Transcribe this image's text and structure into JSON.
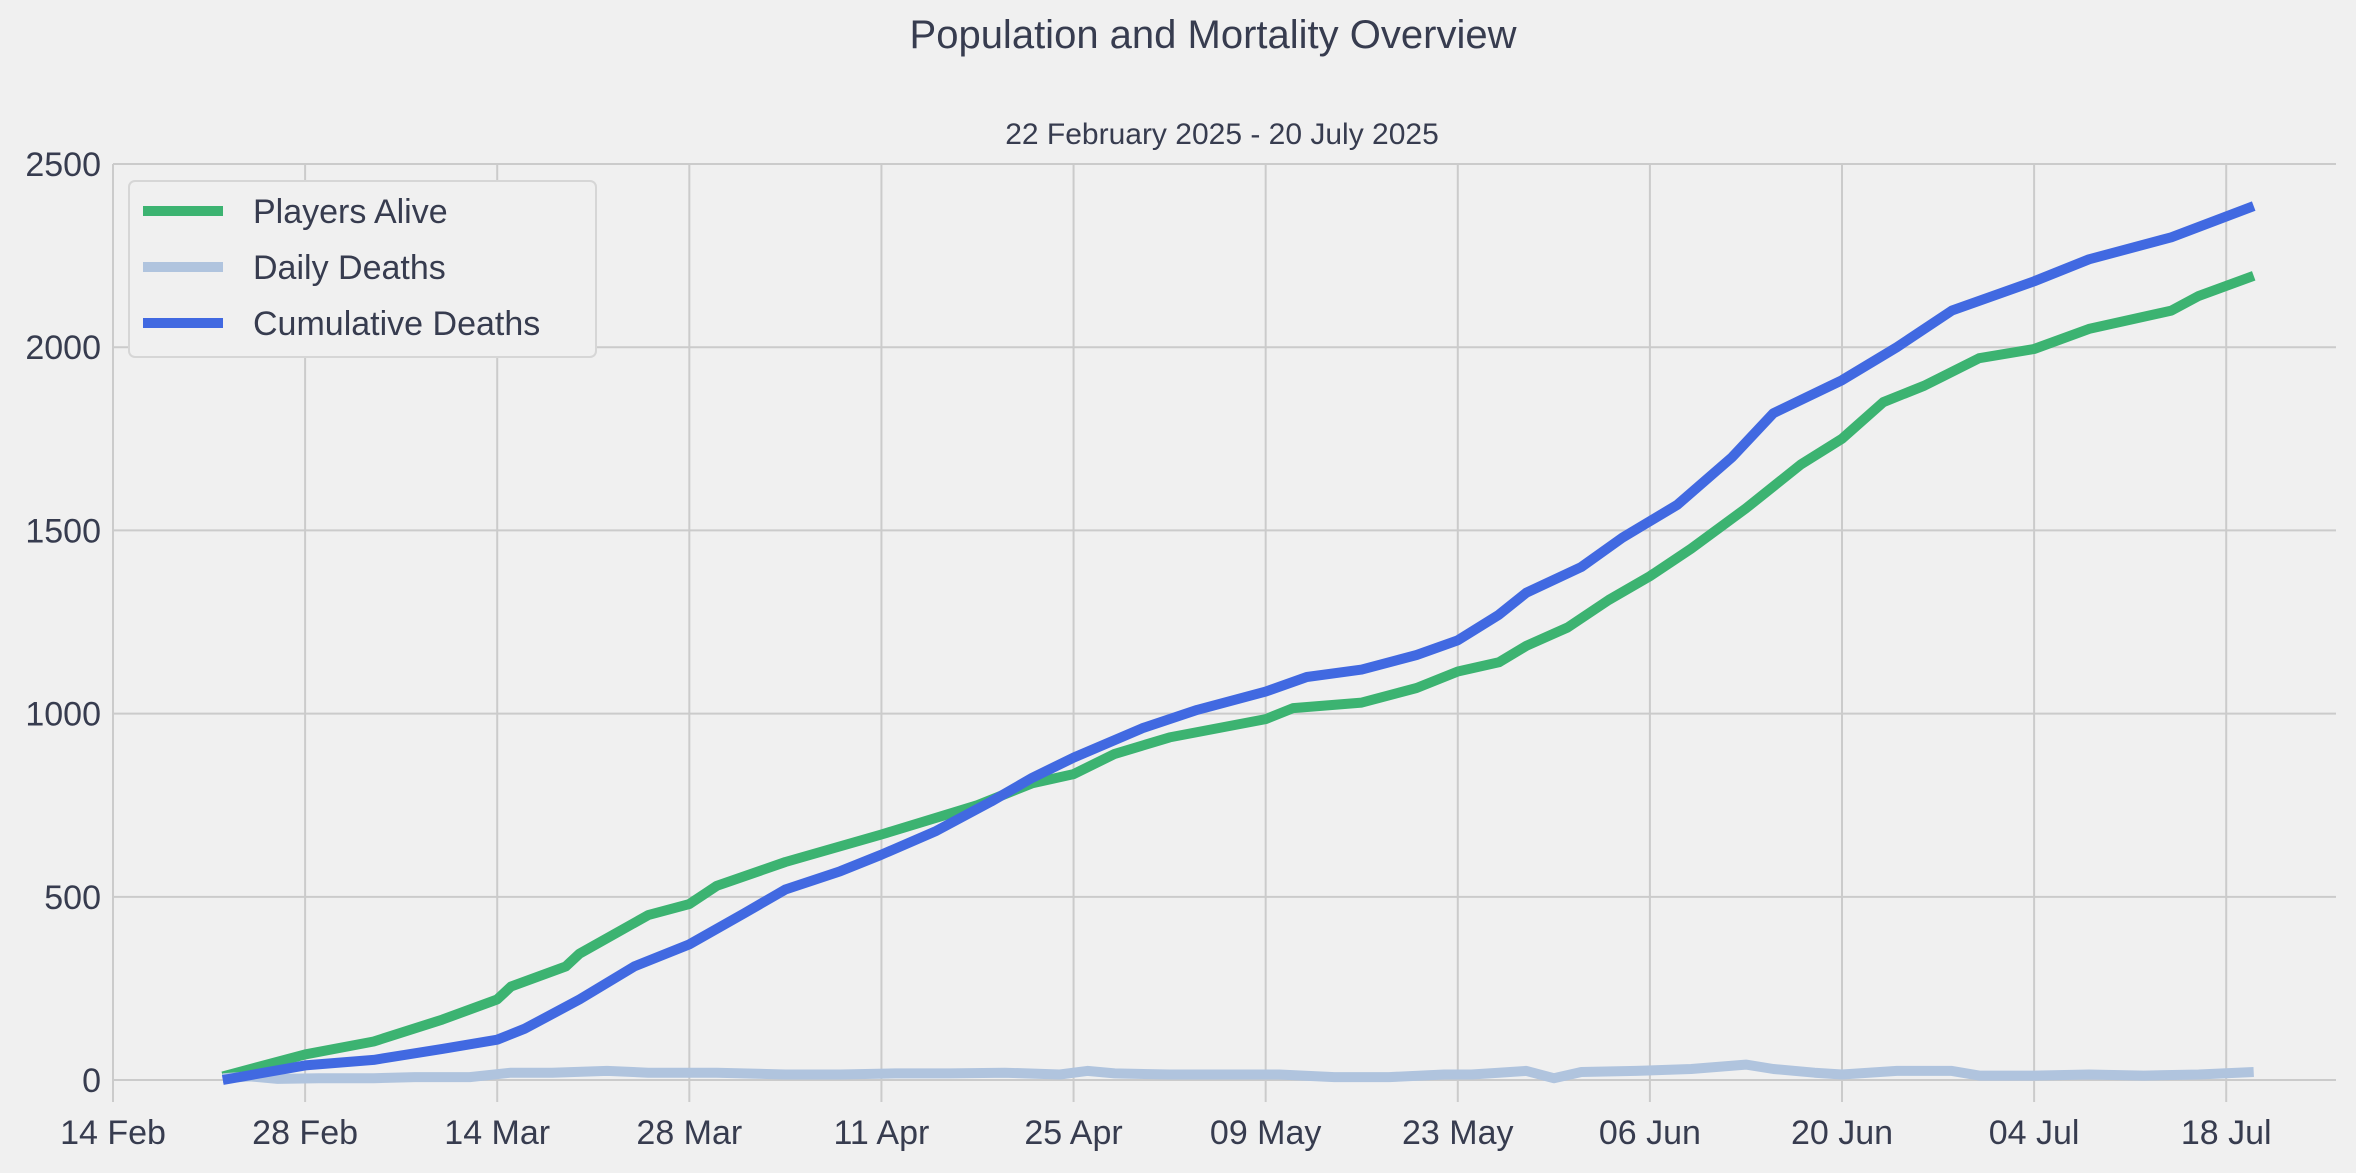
{
  "chart_data": {
    "type": "line",
    "title": "Population and Mortality Overview",
    "subtitle": "22 February 2025 - 20 July 2025",
    "xlabel": "",
    "ylabel": "",
    "x_start": "2025-02-22",
    "x_end": "2025-07-20",
    "xlim": [
      "2025-02-14",
      "2025-07-26"
    ],
    "ylim": [
      -60,
      2500
    ],
    "x_ticks": [
      "14 Feb",
      "28 Feb",
      "14 Mar",
      "28 Mar",
      "11 Apr",
      "25 Apr",
      "09 May",
      "23 May",
      "06 Jun",
      "20 Jun",
      "04 Jul",
      "18 Jul"
    ],
    "x_tick_dates": [
      "2025-02-14",
      "2025-02-28",
      "2025-03-14",
      "2025-03-28",
      "2025-04-11",
      "2025-04-25",
      "2025-05-09",
      "2025-05-23",
      "2025-06-06",
      "2025-06-20",
      "2025-07-04",
      "2025-07-18"
    ],
    "y_ticks": [
      0,
      500,
      1000,
      1500,
      2000,
      2500
    ],
    "grid": true,
    "legend_position": "top-left",
    "series": [
      {
        "name": "Players Alive",
        "color": "#3cb371",
        "points": [
          [
            "2025-02-22",
            10
          ],
          [
            "2025-02-28",
            70
          ],
          [
            "2025-03-05",
            105
          ],
          [
            "2025-03-10",
            165
          ],
          [
            "2025-03-14",
            220
          ],
          [
            "2025-03-15",
            255
          ],
          [
            "2025-03-19",
            310
          ],
          [
            "2025-03-20",
            345
          ],
          [
            "2025-03-25",
            450
          ],
          [
            "2025-03-28",
            480
          ],
          [
            "2025-03-30",
            530
          ],
          [
            "2025-04-04",
            595
          ],
          [
            "2025-04-11",
            670
          ],
          [
            "2025-04-18",
            750
          ],
          [
            "2025-04-22",
            810
          ],
          [
            "2025-04-25",
            835
          ],
          [
            "2025-04-28",
            890
          ],
          [
            "2025-05-02",
            935
          ],
          [
            "2025-05-09",
            985
          ],
          [
            "2025-05-11",
            1015
          ],
          [
            "2025-05-16",
            1030
          ],
          [
            "2025-05-20",
            1070
          ],
          [
            "2025-05-23",
            1115
          ],
          [
            "2025-05-26",
            1140
          ],
          [
            "2025-05-28",
            1185
          ],
          [
            "2025-05-31",
            1235
          ],
          [
            "2025-06-03",
            1310
          ],
          [
            "2025-06-06",
            1375
          ],
          [
            "2025-06-09",
            1450
          ],
          [
            "2025-06-13",
            1560
          ],
          [
            "2025-06-17",
            1680
          ],
          [
            "2025-06-20",
            1750
          ],
          [
            "2025-06-23",
            1850
          ],
          [
            "2025-06-26",
            1895
          ],
          [
            "2025-06-30",
            1970
          ],
          [
            "2025-07-04",
            1995
          ],
          [
            "2025-07-08",
            2050
          ],
          [
            "2025-07-14",
            2100
          ],
          [
            "2025-07-16",
            2140
          ],
          [
            "2025-07-20",
            2195
          ]
        ]
      },
      {
        "name": "Daily Deaths",
        "color": "#b0c4de",
        "points": [
          [
            "2025-02-22",
            5
          ],
          [
            "2025-02-24",
            10
          ],
          [
            "2025-02-26",
            3
          ],
          [
            "2025-03-01",
            5
          ],
          [
            "2025-03-05",
            5
          ],
          [
            "2025-03-08",
            8
          ],
          [
            "2025-03-12",
            8
          ],
          [
            "2025-03-15",
            20
          ],
          [
            "2025-03-18",
            20
          ],
          [
            "2025-03-22",
            25
          ],
          [
            "2025-03-25",
            20
          ],
          [
            "2025-03-30",
            20
          ],
          [
            "2025-04-04",
            15
          ],
          [
            "2025-04-08",
            15
          ],
          [
            "2025-04-12",
            18
          ],
          [
            "2025-04-16",
            18
          ],
          [
            "2025-04-20",
            20
          ],
          [
            "2025-04-24",
            15
          ],
          [
            "2025-04-26",
            25
          ],
          [
            "2025-04-28",
            18
          ],
          [
            "2025-05-02",
            15
          ],
          [
            "2025-05-06",
            15
          ],
          [
            "2025-05-10",
            15
          ],
          [
            "2025-05-14",
            8
          ],
          [
            "2025-05-18",
            8
          ],
          [
            "2025-05-22",
            15
          ],
          [
            "2025-05-24",
            15
          ],
          [
            "2025-05-26",
            20
          ],
          [
            "2025-05-28",
            25
          ],
          [
            "2025-05-30",
            5
          ],
          [
            "2025-06-01",
            22
          ],
          [
            "2025-06-05",
            25
          ],
          [
            "2025-06-09",
            30
          ],
          [
            "2025-06-13",
            42
          ],
          [
            "2025-06-15",
            30
          ],
          [
            "2025-06-18",
            20
          ],
          [
            "2025-06-20",
            15
          ],
          [
            "2025-06-24",
            25
          ],
          [
            "2025-06-28",
            25
          ],
          [
            "2025-06-30",
            12
          ],
          [
            "2025-07-04",
            12
          ],
          [
            "2025-07-08",
            15
          ],
          [
            "2025-07-12",
            12
          ],
          [
            "2025-07-16",
            15
          ],
          [
            "2025-07-20",
            22
          ]
        ]
      },
      {
        "name": "Cumulative Deaths",
        "color": "#4169e1",
        "points": [
          [
            "2025-02-22",
            0
          ],
          [
            "2025-02-28",
            40
          ],
          [
            "2025-03-05",
            55
          ],
          [
            "2025-03-10",
            85
          ],
          [
            "2025-03-14",
            110
          ],
          [
            "2025-03-16",
            140
          ],
          [
            "2025-03-20",
            220
          ],
          [
            "2025-03-24",
            310
          ],
          [
            "2025-03-28",
            370
          ],
          [
            "2025-04-01",
            455
          ],
          [
            "2025-04-04",
            520
          ],
          [
            "2025-04-08",
            570
          ],
          [
            "2025-04-11",
            615
          ],
          [
            "2025-04-15",
            680
          ],
          [
            "2025-04-19",
            760
          ],
          [
            "2025-04-22",
            825
          ],
          [
            "2025-04-25",
            880
          ],
          [
            "2025-04-30",
            960
          ],
          [
            "2025-05-04",
            1010
          ],
          [
            "2025-05-09",
            1060
          ],
          [
            "2025-05-12",
            1100
          ],
          [
            "2025-05-16",
            1120
          ],
          [
            "2025-05-20",
            1160
          ],
          [
            "2025-05-23",
            1200
          ],
          [
            "2025-05-26",
            1270
          ],
          [
            "2025-05-28",
            1330
          ],
          [
            "2025-06-01",
            1400
          ],
          [
            "2025-06-04",
            1480
          ],
          [
            "2025-06-08",
            1570
          ],
          [
            "2025-06-12",
            1700
          ],
          [
            "2025-06-15",
            1820
          ],
          [
            "2025-06-20",
            1910
          ],
          [
            "2025-06-24",
            2000
          ],
          [
            "2025-06-28",
            2100
          ],
          [
            "2025-07-04",
            2180
          ],
          [
            "2025-07-08",
            2240
          ],
          [
            "2025-07-14",
            2300
          ],
          [
            "2025-07-20",
            2385
          ]
        ]
      }
    ]
  }
}
